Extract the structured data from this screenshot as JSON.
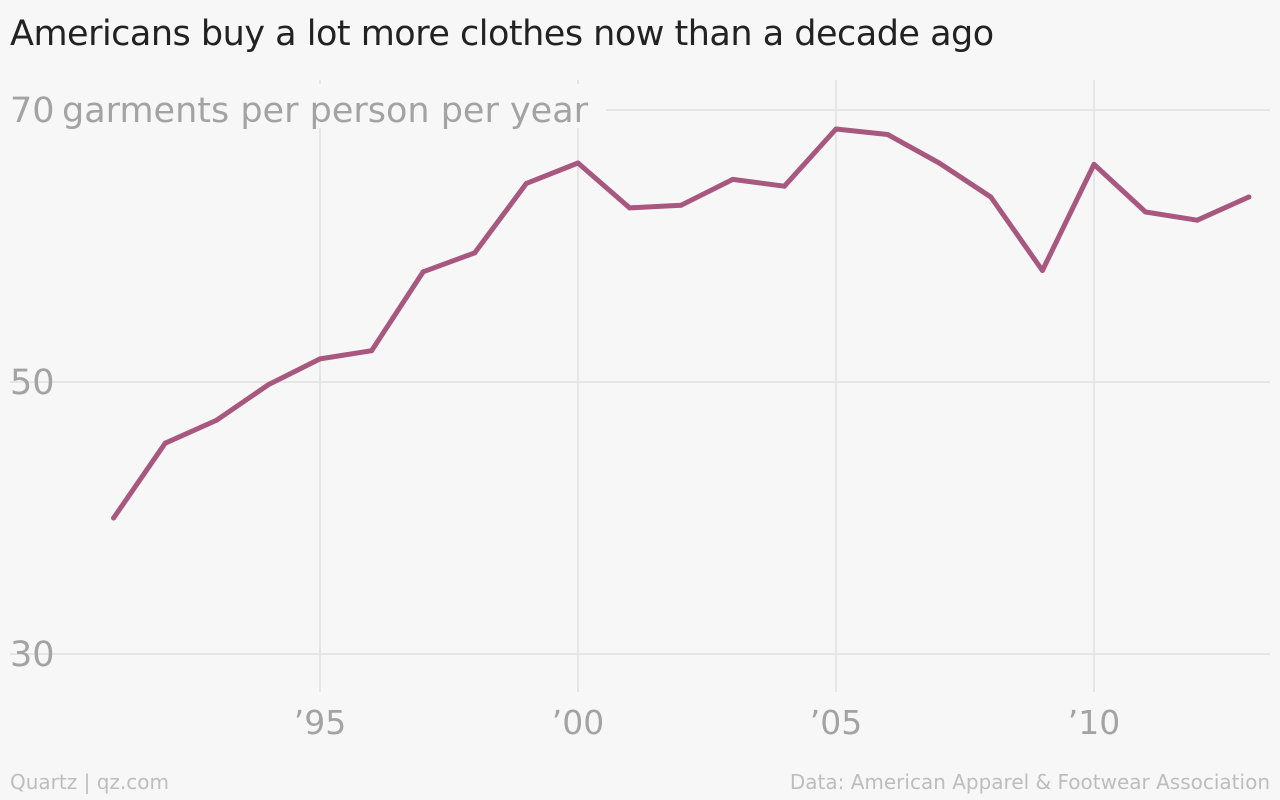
{
  "chart_data": {
    "type": "line",
    "title": "Americans buy a lot more clothes now than a decade ago",
    "ylabel": "garments per person per year",
    "ylim": [
      30,
      70
    ],
    "xlim": [
      1990,
      2013
    ],
    "y_ticks": [
      {
        "value": 70,
        "label": "70"
      },
      {
        "value": 50,
        "label": "50"
      },
      {
        "value": 30,
        "label": "30"
      }
    ],
    "x_ticks": [
      {
        "value": 1995,
        "label": "’95"
      },
      {
        "value": 2000,
        "label": "’00"
      },
      {
        "value": 2005,
        "label": "’05"
      },
      {
        "value": 2010,
        "label": "’10"
      }
    ],
    "series": [
      {
        "color": "#a8577e",
        "x": [
          1991,
          1992,
          1993,
          1994,
          1995,
          1996,
          1997,
          1998,
          1999,
          2000,
          2001,
          2002,
          2003,
          2004,
          2005,
          2006,
          2007,
          2008,
          2009,
          2010,
          2011,
          2012,
          2013
        ],
        "values": [
          40.0,
          45.5,
          47.2,
          49.8,
          51.7,
          52.3,
          58.1,
          59.5,
          64.6,
          66.1,
          62.8,
          63.0,
          64.9,
          64.4,
          68.6,
          68.2,
          66.1,
          63.6,
          58.2,
          66.0,
          62.5,
          61.9,
          63.6
        ]
      }
    ],
    "grid": true,
    "source": "Data: American Apparel & Footwear Association",
    "credit": "Quartz | qz.com"
  }
}
